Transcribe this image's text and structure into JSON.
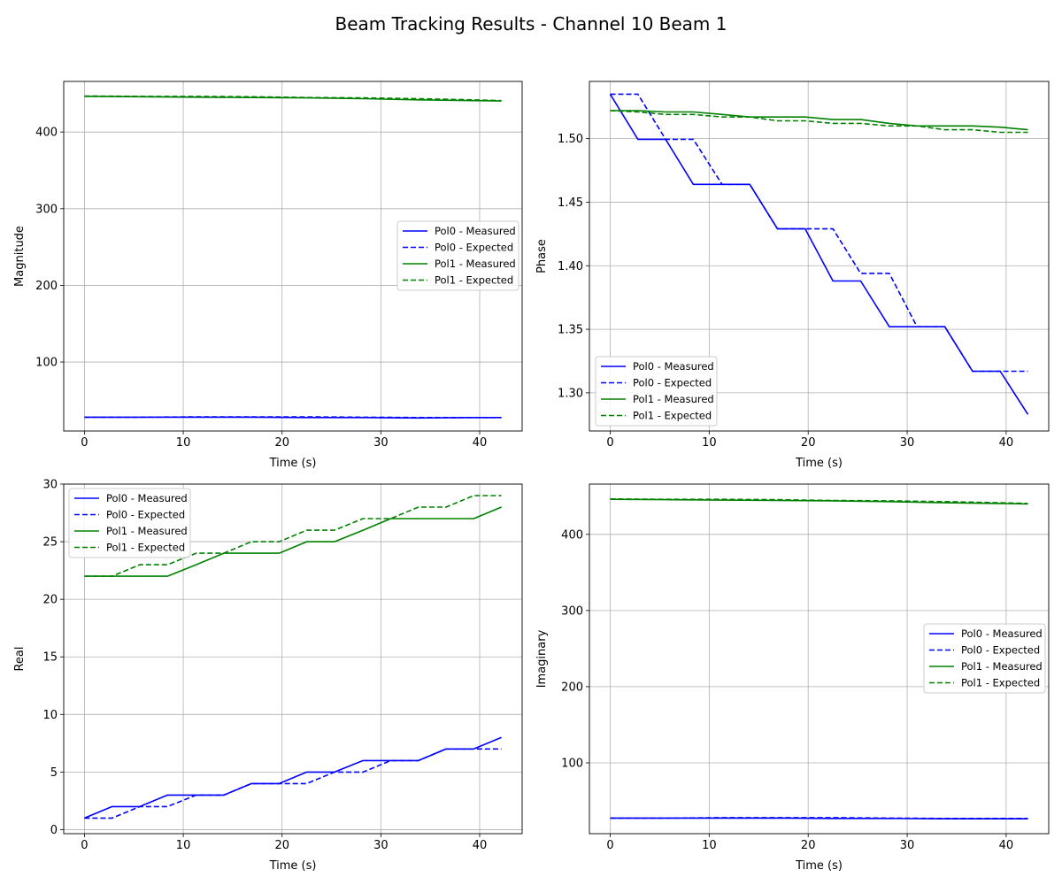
{
  "figure": {
    "title": "Beam Tracking Results - Channel 10 Beam 1"
  },
  "colors": {
    "pol0": "#0000ff",
    "pol1": "#008000",
    "grid": "#b0b0b0"
  },
  "chart_data": [
    {
      "type": "line",
      "xlabel": "Time (s)",
      "ylabel": "Magnitude",
      "xlim": [
        -2.1,
        44.3
      ],
      "ylim": [
        10,
        466
      ],
      "xticks": [
        0,
        10,
        20,
        30,
        40
      ],
      "yticks": [
        100,
        200,
        300,
        400
      ],
      "ytick_labels": [
        "100",
        "200",
        "300",
        "400"
      ],
      "grid": true,
      "legend_position": "center-right",
      "series": [
        {
          "name": "Pol0 - Measured",
          "color": "#0000ff",
          "dash": "solid",
          "x": [
            0,
            5.6,
            11.3,
            16.9,
            22.5,
            28.2,
            33.8,
            39.4,
            42.2
          ],
          "y": [
            28.0,
            28.0,
            28.0,
            28.0,
            27.5,
            27.5,
            27.0,
            27.5,
            27.5
          ]
        },
        {
          "name": "Pol0 - Expected",
          "color": "#0000ff",
          "dash": "dashed",
          "x": [
            0,
            5.6,
            11.3,
            16.9,
            22.5,
            28.2,
            33.8,
            39.4,
            42.2
          ],
          "y": [
            28.0,
            28.0,
            28.5,
            28.5,
            28.5,
            28.0,
            27.5,
            27.5,
            27.5
          ]
        },
        {
          "name": "Pol1 - Measured",
          "color": "#008000",
          "dash": "solid",
          "x": [
            0,
            5.6,
            11.3,
            16.9,
            22.5,
            28.2,
            33.8,
            39.4,
            42.2
          ],
          "y": [
            446.5,
            446.0,
            445.5,
            445.0,
            444.5,
            443.5,
            442.0,
            441.0,
            440.5
          ]
        },
        {
          "name": "Pol1 - Expected",
          "color": "#008000",
          "dash": "dashed",
          "x": [
            0,
            5.6,
            11.3,
            16.9,
            22.5,
            28.2,
            33.8,
            39.4,
            42.2
          ],
          "y": [
            447.0,
            446.5,
            446.5,
            446.0,
            445.0,
            444.5,
            443.5,
            442.0,
            441.0
          ]
        }
      ]
    },
    {
      "type": "line",
      "xlabel": "Time (s)",
      "ylabel": "Phase",
      "xlim": [
        -2.1,
        44.3
      ],
      "ylim": [
        1.27,
        1.545
      ],
      "xticks": [
        0,
        10,
        20,
        30,
        40
      ],
      "yticks": [
        1.3,
        1.35,
        1.4,
        1.45,
        1.5
      ],
      "ytick_labels": [
        "1.30",
        "1.35",
        "1.40",
        "1.45",
        "1.50"
      ],
      "grid": true,
      "legend_position": "lower-left",
      "series": [
        {
          "name": "Pol0 - Measured",
          "color": "#0000ff",
          "dash": "solid",
          "x": [
            0,
            2.8,
            5.6,
            8.4,
            11.3,
            14.1,
            16.9,
            19.7,
            22.5,
            25.3,
            28.2,
            31.0,
            33.8,
            36.6,
            39.4,
            42.2
          ],
          "y": [
            1.535,
            1.4995,
            1.4995,
            1.464,
            1.464,
            1.464,
            1.429,
            1.429,
            1.388,
            1.388,
            1.352,
            1.352,
            1.352,
            1.317,
            1.317,
            1.283
          ]
        },
        {
          "name": "Pol0 - Expected",
          "color": "#0000ff",
          "dash": "dashed",
          "x": [
            0,
            2.8,
            5.6,
            8.4,
            11.3,
            14.1,
            16.9,
            19.7,
            22.5,
            25.3,
            28.2,
            31.0,
            33.8,
            36.6,
            39.4,
            42.2
          ],
          "y": [
            1.535,
            1.535,
            1.4995,
            1.4995,
            1.464,
            1.464,
            1.429,
            1.429,
            1.429,
            1.394,
            1.394,
            1.352,
            1.352,
            1.317,
            1.317,
            1.317
          ]
        },
        {
          "name": "Pol1 - Measured",
          "color": "#008000",
          "dash": "solid",
          "x": [
            0,
            2.8,
            5.6,
            8.4,
            11.3,
            14.1,
            16.9,
            19.7,
            22.5,
            25.3,
            28.2,
            31.0,
            33.8,
            36.6,
            39.4,
            42.2
          ],
          "y": [
            1.522,
            1.522,
            1.521,
            1.521,
            1.519,
            1.517,
            1.517,
            1.517,
            1.515,
            1.515,
            1.512,
            1.51,
            1.51,
            1.51,
            1.509,
            1.507
          ]
        },
        {
          "name": "Pol1 - Expected",
          "color": "#008000",
          "dash": "dashed",
          "x": [
            0,
            2.8,
            5.6,
            8.4,
            11.3,
            14.1,
            16.9,
            19.7,
            22.5,
            25.3,
            28.2,
            31.0,
            33.8,
            36.6,
            39.4,
            42.2
          ],
          "y": [
            1.522,
            1.521,
            1.519,
            1.519,
            1.517,
            1.517,
            1.514,
            1.514,
            1.512,
            1.512,
            1.51,
            1.51,
            1.507,
            1.507,
            1.505,
            1.505
          ]
        }
      ]
    },
    {
      "type": "line",
      "xlabel": "Time (s)",
      "ylabel": "Real",
      "xlim": [
        -2.1,
        44.3
      ],
      "ylim": [
        -0.35,
        30.0
      ],
      "xticks": [
        0,
        10,
        20,
        30,
        40
      ],
      "yticks": [
        0,
        5,
        10,
        15,
        20,
        25,
        30
      ],
      "ytick_labels": [
        "0",
        "5",
        "10",
        "15",
        "20",
        "25",
        "30"
      ],
      "grid": true,
      "legend_position": "upper-left",
      "series": [
        {
          "name": "Pol0 - Measured",
          "color": "#0000ff",
          "dash": "solid",
          "x": [
            0,
            2.8,
            5.6,
            8.4,
            11.3,
            14.1,
            16.9,
            19.7,
            22.5,
            25.3,
            28.2,
            31.0,
            33.8,
            36.6,
            39.4,
            42.2
          ],
          "y": [
            1,
            2,
            2,
            3,
            3,
            3,
            4,
            4,
            5,
            5,
            6,
            6,
            6,
            7,
            7,
            8
          ]
        },
        {
          "name": "Pol0 - Expected",
          "color": "#0000ff",
          "dash": "dashed",
          "x": [
            0,
            2.8,
            5.6,
            8.4,
            11.3,
            14.1,
            16.9,
            19.7,
            22.5,
            25.3,
            28.2,
            31.0,
            33.8,
            36.6,
            39.4,
            42.2
          ],
          "y": [
            1,
            1,
            2,
            2,
            3,
            3,
            4,
            4,
            4,
            5,
            5,
            6,
            6,
            7,
            7,
            7
          ]
        },
        {
          "name": "Pol1 - Measured",
          "color": "#008000",
          "dash": "solid",
          "x": [
            0,
            2.8,
            5.6,
            8.4,
            11.3,
            14.1,
            16.9,
            19.7,
            22.5,
            25.3,
            28.2,
            31.0,
            33.8,
            36.6,
            39.4,
            42.2
          ],
          "y": [
            22,
            22,
            22,
            22,
            23,
            24,
            24,
            24,
            25,
            25,
            26,
            27,
            27,
            27,
            27,
            28
          ]
        },
        {
          "name": "Pol1 - Expected",
          "color": "#008000",
          "dash": "dashed",
          "x": [
            0,
            2.8,
            5.6,
            8.4,
            11.3,
            14.1,
            16.9,
            19.7,
            22.5,
            25.3,
            28.2,
            31.0,
            33.8,
            36.6,
            39.4,
            42.2
          ],
          "y": [
            22,
            22,
            23,
            23,
            24,
            24,
            25,
            25,
            26,
            26,
            27,
            27,
            28,
            28,
            29,
            29
          ]
        }
      ]
    },
    {
      "type": "line",
      "xlabel": "Time (s)",
      "ylabel": "Imaginary",
      "xlim": [
        -2.1,
        44.3
      ],
      "ylim": [
        7,
        466
      ],
      "xticks": [
        0,
        10,
        20,
        30,
        40
      ],
      "yticks": [
        100,
        200,
        300,
        400
      ],
      "ytick_labels": [
        "100",
        "200",
        "300",
        "400"
      ],
      "grid": true,
      "legend_position": "center-right",
      "series": [
        {
          "name": "Pol0 - Measured",
          "color": "#0000ff",
          "dash": "solid",
          "x": [
            0,
            5.6,
            11.3,
            16.9,
            22.5,
            28.2,
            33.8,
            39.4,
            42.2
          ],
          "y": [
            27.5,
            27.5,
            27.5,
            27.5,
            27.0,
            27.0,
            26.5,
            26.5,
            26.5
          ]
        },
        {
          "name": "Pol0 - Expected",
          "color": "#0000ff",
          "dash": "dashed",
          "x": [
            0,
            5.6,
            11.3,
            16.9,
            22.5,
            28.2,
            33.8,
            39.4,
            42.2
          ],
          "y": [
            27.5,
            27.5,
            28.0,
            28.0,
            28.0,
            27.5,
            27.0,
            27.0,
            27.0
          ]
        },
        {
          "name": "Pol1 - Measured",
          "color": "#008000",
          "dash": "solid",
          "x": [
            0,
            5.6,
            11.3,
            16.9,
            22.5,
            28.2,
            33.8,
            39.4,
            42.2
          ],
          "y": [
            446.0,
            445.5,
            445.0,
            444.5,
            444.0,
            443.0,
            441.5,
            440.5,
            440.0
          ]
        },
        {
          "name": "Pol1 - Expected",
          "color": "#008000",
          "dash": "dashed",
          "x": [
            0,
            5.6,
            11.3,
            16.9,
            22.5,
            28.2,
            33.8,
            39.4,
            42.2
          ],
          "y": [
            446.5,
            446.0,
            446.0,
            445.5,
            444.5,
            444.0,
            443.0,
            441.5,
            440.5
          ]
        }
      ]
    }
  ]
}
